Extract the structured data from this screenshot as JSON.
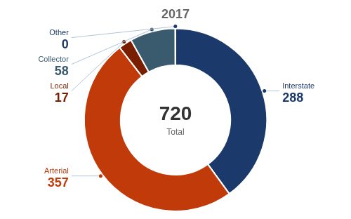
{
  "chart_data": {
    "type": "doughnut",
    "title": "2017",
    "categories": [
      "Interstate",
      "Arterial",
      "Local",
      "Collector",
      "Other"
    ],
    "values": [
      288,
      357,
      17,
      58,
      0.3
    ],
    "value_labels": [
      "288",
      "357",
      "17",
      "58",
      "0"
    ],
    "colors": [
      "#1b3a6b",
      "#c03a0a",
      "#7a1e00",
      "#3a5a6e",
      "#1b3a6b"
    ],
    "annotations": [
      "720",
      "Total"
    ],
    "data_labels": true
  }
}
